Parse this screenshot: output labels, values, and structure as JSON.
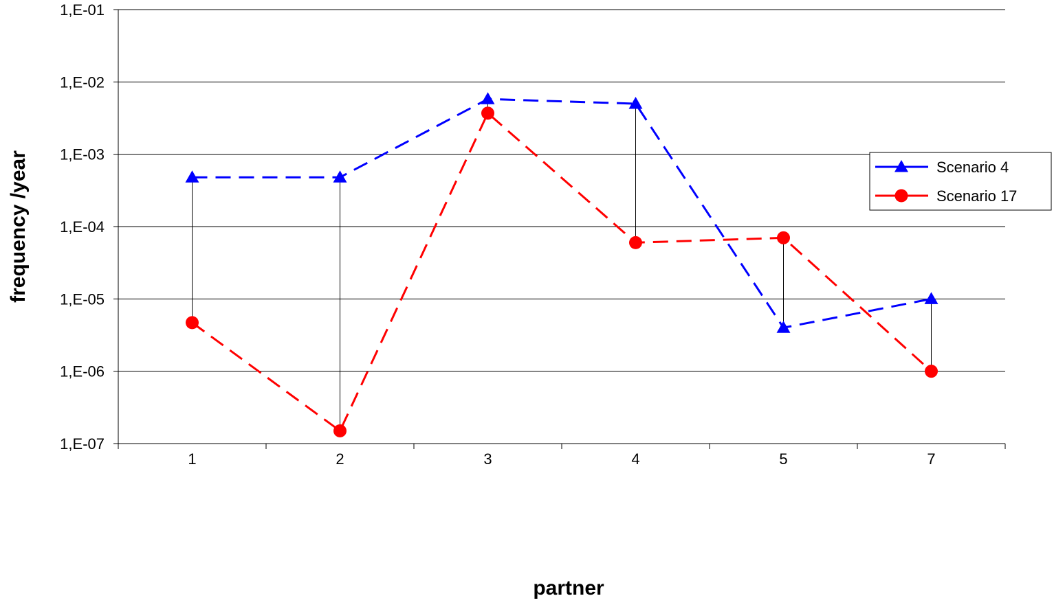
{
  "chart_data": {
    "type": "line",
    "title": "",
    "xlabel": "partner",
    "ylabel": "frequency /year",
    "yscale": "log",
    "ylim": [
      1e-07,
      0.1
    ],
    "y_tick_values": [
      1e-07,
      1e-06,
      1e-05,
      0.0001,
      0.001,
      0.01,
      0.1
    ],
    "y_tick_labels": [
      "1,E-07",
      "1,E-06",
      "1,E-05",
      "1,E-04",
      "1,E-03",
      "1,E-02",
      "1,E-01"
    ],
    "categories": [
      "1",
      "2",
      "3",
      "4",
      "5",
      "7"
    ],
    "grid": true,
    "legend_position": "right",
    "series": [
      {
        "name": "Scenario 4",
        "color": "#0000ff",
        "marker": "triangle",
        "line_style": "dashed",
        "values": [
          0.00048,
          0.00048,
          0.0058,
          0.005,
          4e-06,
          1e-05
        ]
      },
      {
        "name": "Scenario 17",
        "color": "#ff0000",
        "marker": "circle",
        "line_style": "dashed",
        "values": [
          4.7e-06,
          1.5e-07,
          0.0037,
          6e-05,
          7e-05,
          1e-06
        ]
      }
    ],
    "drop_lines": true
  }
}
